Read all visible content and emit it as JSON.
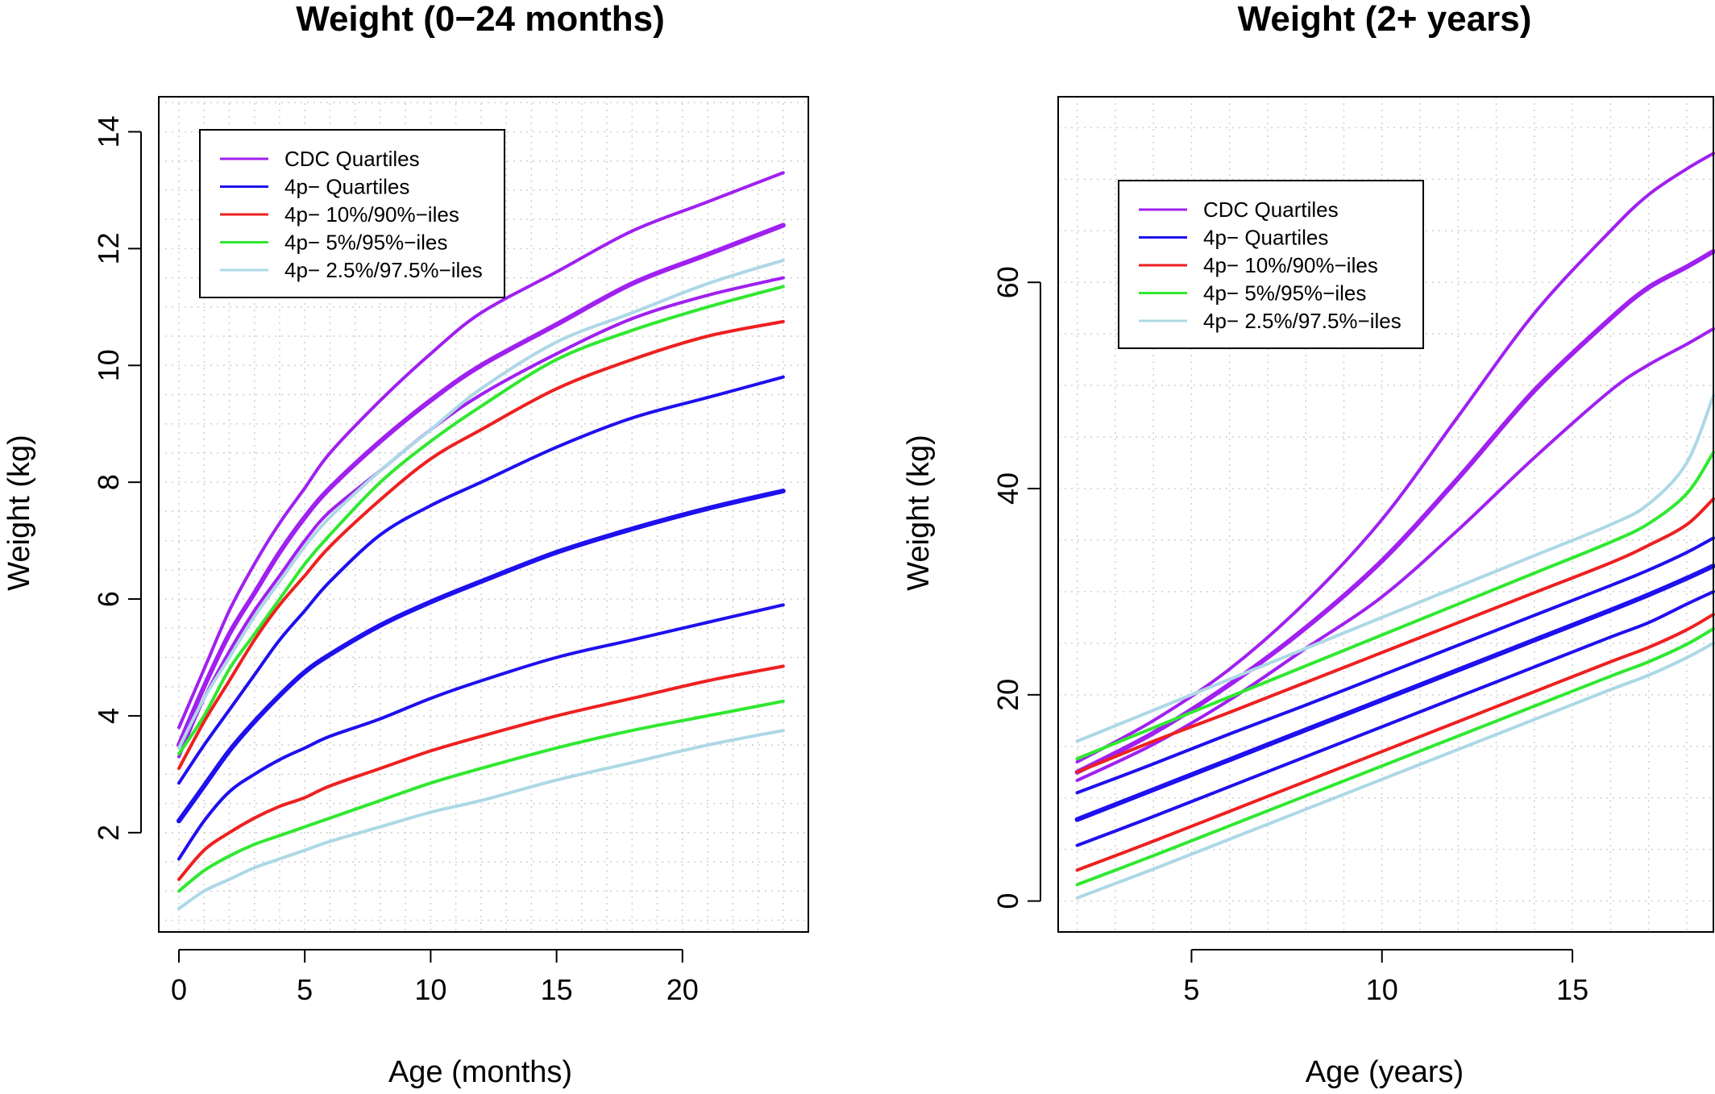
{
  "colors": {
    "cdc": "#a020f0",
    "quart": "#1f10ee",
    "p10": "#ee2020",
    "p5": "#30e830",
    "p25": "#add8e6"
  },
  "chart_data": [
    {
      "type": "line",
      "title": "Weight (0−24 months)",
      "xlabel": "Age (months)",
      "ylabel": "Weight (kg)",
      "xlim": [
        -0.8,
        25
      ],
      "ylim": [
        0.3,
        14.6
      ],
      "xticks": [
        0,
        5,
        10,
        15,
        20
      ],
      "yticks": [
        2,
        4,
        6,
        8,
        10,
        12,
        14
      ],
      "grid": true,
      "legend": {
        "position": "top-left",
        "entries": [
          {
            "label": "CDC Quartiles",
            "color_key": "cdc"
          },
          {
            "label": "4p− Quartiles",
            "color_key": "quart"
          },
          {
            "label": "4p− 10%/90%−iles",
            "color_key": "p10"
          },
          {
            "label": "4p− 5%/95%−iles",
            "color_key": "p5"
          },
          {
            "label": "4p− 2.5%/97.5%−iles",
            "color_key": "p25"
          }
        ]
      },
      "x": [
        0,
        1,
        2,
        3,
        4,
        5,
        6,
        8,
        10,
        12,
        15,
        18,
        21,
        24
      ],
      "series": [
        {
          "color_key": "cdc",
          "width": 4,
          "values": [
            3.8,
            4.8,
            5.8,
            6.6,
            7.3,
            7.9,
            8.5,
            9.4,
            10.2,
            10.9,
            11.6,
            12.3,
            12.8,
            13.3
          ]
        },
        {
          "color_key": "cdc",
          "width": 6,
          "values": [
            3.5,
            4.5,
            5.4,
            6.1,
            6.8,
            7.4,
            7.9,
            8.7,
            9.4,
            10.0,
            10.7,
            11.4,
            11.9,
            12.4
          ]
        },
        {
          "color_key": "cdc",
          "width": 4,
          "values": [
            3.3,
            4.3,
            5.1,
            5.8,
            6.4,
            7.0,
            7.5,
            8.2,
            8.9,
            9.5,
            10.2,
            10.8,
            11.2,
            11.5
          ]
        },
        {
          "color_key": "p25",
          "width": 4,
          "values": [
            3.45,
            4.3,
            5.0,
            5.7,
            6.3,
            6.9,
            7.4,
            8.2,
            8.9,
            9.6,
            10.4,
            10.9,
            11.4,
            11.8
          ]
        },
        {
          "color_key": "p5",
          "width": 4,
          "values": [
            3.35,
            4.0,
            4.8,
            5.4,
            6.0,
            6.6,
            7.1,
            8.0,
            8.7,
            9.3,
            10.1,
            10.6,
            11.0,
            11.35
          ]
        },
        {
          "color_key": "p10",
          "width": 4,
          "values": [
            3.1,
            3.9,
            4.6,
            5.3,
            5.9,
            6.4,
            6.9,
            7.7,
            8.4,
            8.9,
            9.6,
            10.1,
            10.5,
            10.75
          ]
        },
        {
          "color_key": "quart",
          "width": 4,
          "values": [
            2.85,
            3.5,
            4.1,
            4.7,
            5.3,
            5.8,
            6.3,
            7.1,
            7.6,
            8.0,
            8.6,
            9.1,
            9.45,
            9.8
          ]
        },
        {
          "color_key": "quart",
          "width": 6,
          "values": [
            2.2,
            2.8,
            3.4,
            3.9,
            4.35,
            4.75,
            5.05,
            5.55,
            5.95,
            6.3,
            6.8,
            7.2,
            7.55,
            7.85
          ]
        },
        {
          "color_key": "quart",
          "width": 4,
          "values": [
            1.55,
            2.2,
            2.7,
            3.0,
            3.25,
            3.45,
            3.65,
            3.95,
            4.3,
            4.6,
            5.0,
            5.3,
            5.6,
            5.9
          ]
        },
        {
          "color_key": "p10",
          "width": 4,
          "values": [
            1.2,
            1.7,
            2.0,
            2.25,
            2.45,
            2.6,
            2.8,
            3.1,
            3.4,
            3.65,
            4.0,
            4.3,
            4.6,
            4.85
          ]
        },
        {
          "color_key": "p5",
          "width": 4,
          "values": [
            1.0,
            1.35,
            1.6,
            1.8,
            1.95,
            2.1,
            2.25,
            2.55,
            2.85,
            3.1,
            3.45,
            3.75,
            4.0,
            4.25
          ]
        },
        {
          "color_key": "p25",
          "width": 4,
          "values": [
            0.7,
            1.0,
            1.2,
            1.4,
            1.55,
            1.7,
            1.85,
            2.1,
            2.35,
            2.55,
            2.9,
            3.2,
            3.5,
            3.75
          ]
        }
      ]
    },
    {
      "type": "line",
      "title": "Weight (2+ years)",
      "xlabel": "Age (years)",
      "ylabel": "Weight (kg)",
      "xlim": [
        1.5,
        18.7
      ],
      "ylim": [
        -3,
        78
      ],
      "xticks": [
        5,
        10,
        15
      ],
      "yticks": [
        0,
        20,
        40,
        60
      ],
      "grid": true,
      "legend": {
        "position": "top-left",
        "entries": [
          {
            "label": "CDC Quartiles",
            "color_key": "cdc"
          },
          {
            "label": "4p− Quartiles",
            "color_key": "quart"
          },
          {
            "label": "4p− 10%/90%−iles",
            "color_key": "p10"
          },
          {
            "label": "4p− 5%/95%−iles",
            "color_key": "p5"
          },
          {
            "label": "4p− 2.5%/97.5%−iles",
            "color_key": "p25"
          }
        ]
      },
      "x": [
        2,
        4,
        6,
        8,
        10,
        12,
        14,
        16,
        17,
        18,
        18.7
      ],
      "series": [
        {
          "color_key": "cdc",
          "width": 4,
          "values": [
            13.5,
            17.5,
            22.5,
            29,
            37,
            47,
            57,
            65,
            68.5,
            71,
            72.5
          ]
        },
        {
          "color_key": "cdc",
          "width": 6,
          "values": [
            12.5,
            16.3,
            21,
            26.5,
            33,
            41,
            49.5,
            56.5,
            59.5,
            61.5,
            63
          ]
        },
        {
          "color_key": "cdc",
          "width": 4,
          "values": [
            11.7,
            15.2,
            19.5,
            24.5,
            29.5,
            36,
            43,
            49.5,
            52,
            54,
            55.5
          ]
        },
        {
          "color_key": "p25",
          "width": 4,
          "values": [
            15.5,
            18.5,
            21.5,
            24.5,
            27.5,
            30.5,
            33.5,
            36.5,
            38.5,
            42.5,
            49
          ]
        },
        {
          "color_key": "p5",
          "width": 4,
          "values": [
            13.8,
            16.8,
            19.8,
            22.8,
            25.8,
            28.8,
            31.8,
            34.8,
            36.6,
            39.5,
            43.5
          ]
        },
        {
          "color_key": "p10",
          "width": 4,
          "values": [
            12.5,
            15.5,
            18.3,
            21.2,
            24.1,
            27.0,
            29.9,
            32.8,
            34.5,
            36.5,
            39
          ]
        },
        {
          "color_key": "quart",
          "width": 4,
          "values": [
            10.5,
            13.3,
            16.2,
            19.0,
            21.9,
            24.8,
            27.7,
            30.6,
            32.1,
            33.8,
            35.2
          ]
        },
        {
          "color_key": "quart",
          "width": 6,
          "values": [
            7.9,
            10.8,
            13.7,
            16.6,
            19.5,
            22.4,
            25.3,
            28.2,
            29.7,
            31.3,
            32.5
          ]
        },
        {
          "color_key": "quart",
          "width": 4,
          "values": [
            5.4,
            8.2,
            11.1,
            14.0,
            16.9,
            19.8,
            22.7,
            25.6,
            27.0,
            28.8,
            30.0
          ]
        },
        {
          "color_key": "p10",
          "width": 4,
          "values": [
            3.0,
            5.8,
            8.7,
            11.6,
            14.5,
            17.4,
            20.3,
            23.2,
            24.6,
            26.3,
            27.8
          ]
        },
        {
          "color_key": "p5",
          "width": 4,
          "values": [
            1.6,
            4.4,
            7.3,
            10.2,
            13.1,
            16.0,
            18.9,
            21.8,
            23.2,
            24.9,
            26.4
          ]
        },
        {
          "color_key": "p25",
          "width": 4,
          "values": [
            0.3,
            3.1,
            6.0,
            8.9,
            11.8,
            14.7,
            17.6,
            20.5,
            21.9,
            23.6,
            25.0
          ]
        }
      ]
    }
  ]
}
